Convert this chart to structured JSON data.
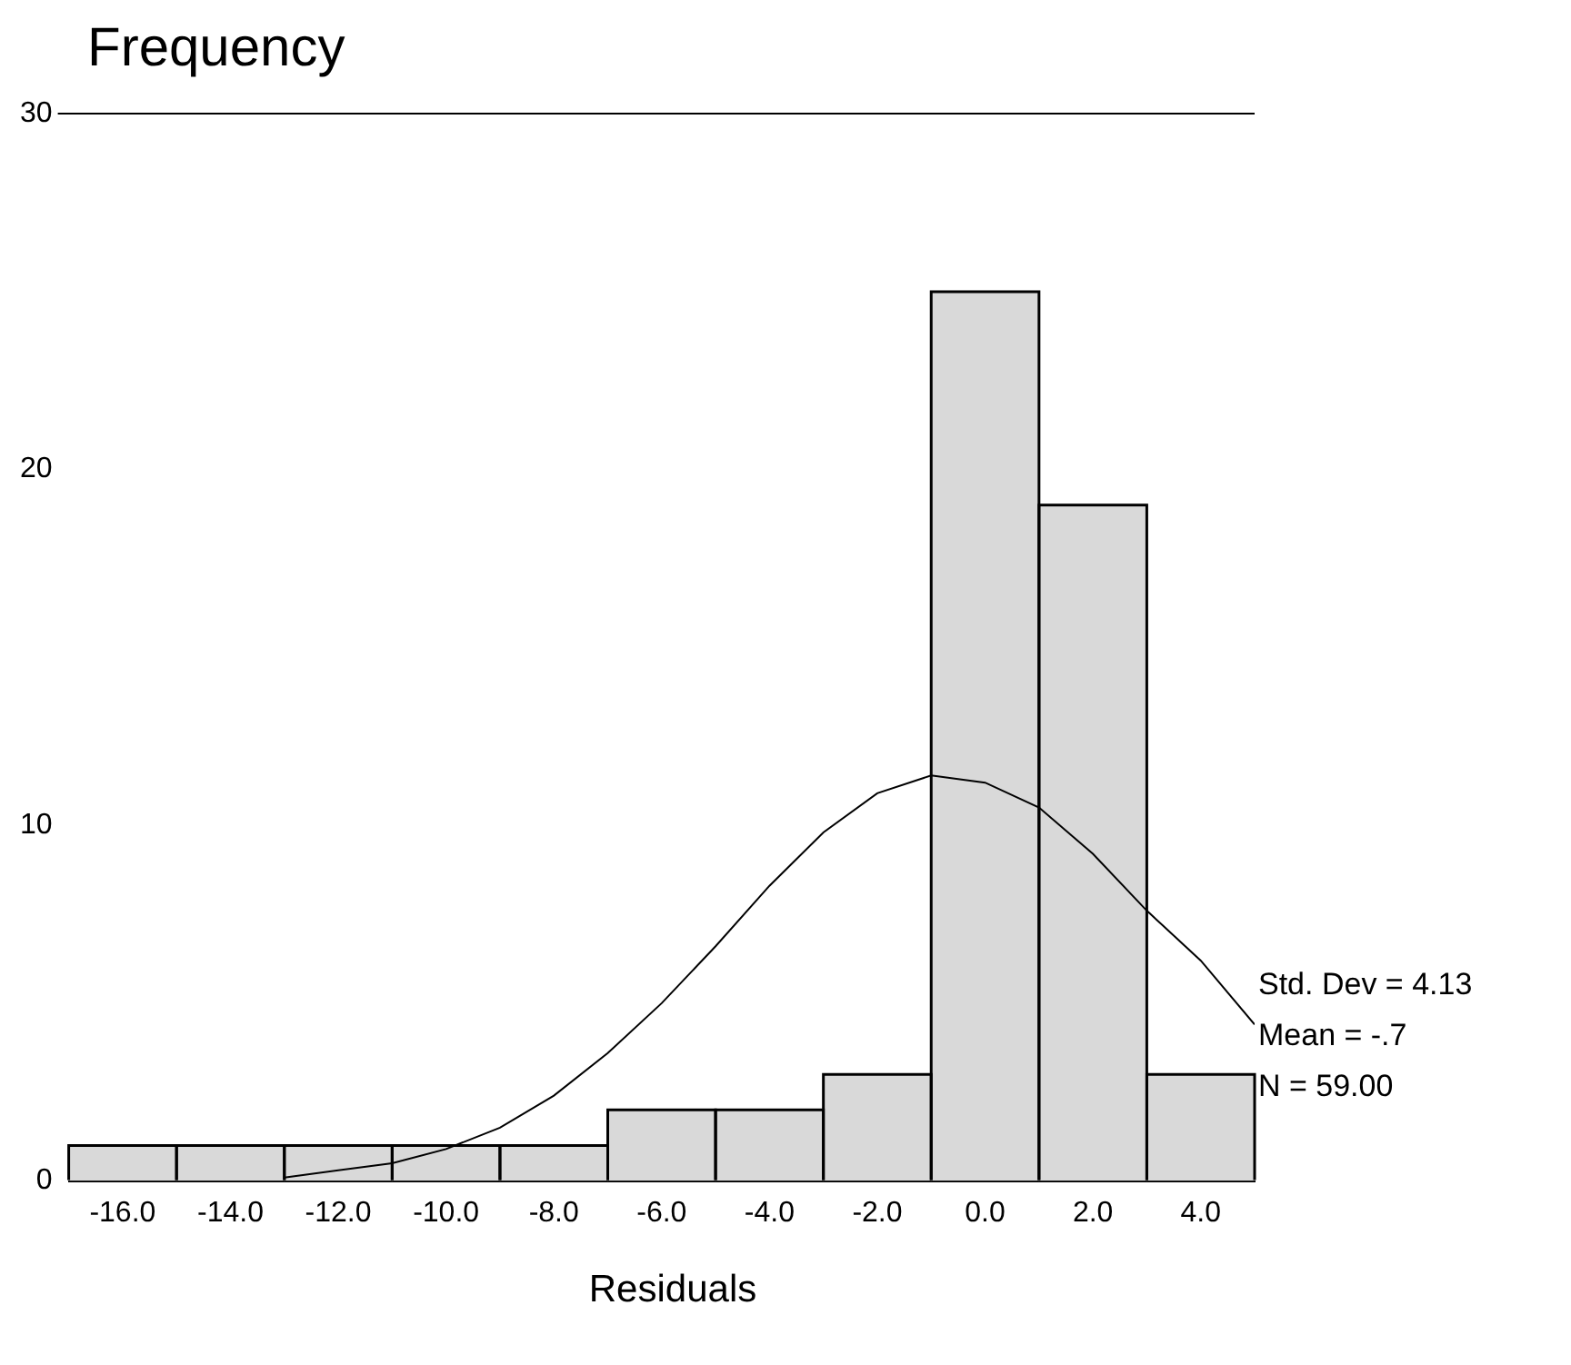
{
  "chart_data": {
    "type": "histogram",
    "title": "Frequency",
    "xlabel": "Residuals",
    "bins": [
      -17,
      -15,
      -13,
      -11,
      -9,
      -7,
      -5,
      -3,
      -1,
      1,
      3,
      5
    ],
    "values": [
      1,
      1,
      1,
      1,
      1,
      2,
      2,
      3,
      25,
      19,
      3
    ],
    "color": "#d9d9d9",
    "series": [
      {
        "type": "line",
        "color": "#000000",
        "x": [
          -13,
          -12,
          -11,
          -10,
          -9,
          -8,
          -7,
          -6,
          -5,
          -4,
          -3,
          -2,
          -1,
          0,
          1,
          2,
          3,
          4,
          5
        ],
        "values": [
          0.1,
          0.3,
          0.5,
          0.9,
          1.5,
          2.4,
          3.6,
          5.0,
          6.6,
          8.3,
          9.8,
          10.9,
          11.4,
          11.2,
          10.5,
          9.2,
          7.6,
          6.2,
          4.4
        ]
      }
    ],
    "xlim": [
      -17,
      5
    ],
    "xticks": [
      {
        "value": -16,
        "label": "-16.0"
      },
      {
        "value": -14,
        "label": "-14.0"
      },
      {
        "value": -12,
        "label": "-12.0"
      },
      {
        "value": -10,
        "label": "-10.0"
      },
      {
        "value": -8,
        "label": "-8.0"
      },
      {
        "value": -6,
        "label": "-6.0"
      },
      {
        "value": -4,
        "label": "-4.0"
      },
      {
        "value": -2,
        "label": "-2.0"
      },
      {
        "value": 0,
        "label": "0.0"
      },
      {
        "value": 2,
        "label": "2.0"
      },
      {
        "value": 4,
        "label": "4.0"
      }
    ],
    "ylim": [
      0,
      30
    ],
    "yticks": [
      0,
      10,
      20,
      30
    ],
    "grid": false,
    "legend": false,
    "annotations": [
      "Std. Dev = 4.13",
      "Mean = -.7",
      "N = 59.00"
    ]
  }
}
